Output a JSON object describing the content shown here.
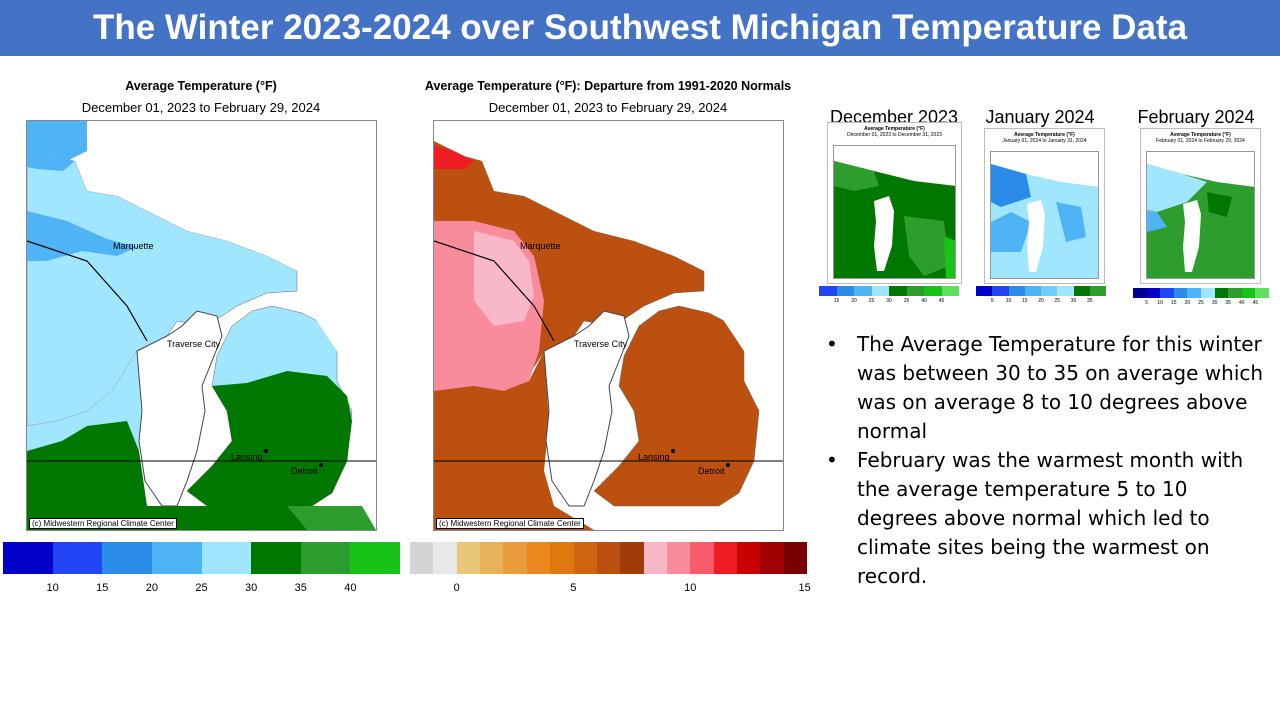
{
  "title": "The Winter 2023-2024 over Southwest Michigan Temperature Data",
  "map_avg": {
    "title": "Average Temperature (°F)",
    "subtitle": "December 01, 2023 to February 29, 2024",
    "credit": "(c) Midwestern Regional Climate Center",
    "cities": {
      "marquette": "Marquette",
      "traverse": "Traverse City",
      "lansing": "Lansing",
      "detroit": "Detroit"
    },
    "scale": {
      "colors": [
        "#0000c8",
        "#2246f5",
        "#2a8ce8",
        "#4fb4f5",
        "#a0e6ff",
        "#007800",
        "#2d9e2d",
        "#17c317"
      ],
      "ticks": [
        "10",
        "15",
        "20",
        "25",
        "30",
        "35",
        "40"
      ]
    }
  },
  "map_dep": {
    "title": "Average Temperature (°F): Departure from 1991-2020 Normals",
    "subtitle": "December 01, 2023 to February 29, 2024",
    "credit": "(c) Midwestern Regional Climate Center",
    "cities": {
      "marquette": "Marquette",
      "traverse": "Traverse City",
      "lansing": "Lansing",
      "detroit": "Detroit"
    },
    "scale": {
      "colors": [
        "#d4d4d4",
        "#e8e8e8",
        "#e8c878",
        "#e8b25a",
        "#e89c3c",
        "#e8881e",
        "#e07810",
        "#d06410",
        "#bb5010",
        "#a03c08",
        "#f8b8c8",
        "#f88c9c",
        "#f85c6c",
        "#f01c24",
        "#c80000",
        "#a00000",
        "#780000"
      ],
      "ticks": [
        "0",
        "5",
        "10",
        "15"
      ]
    }
  },
  "monthly": [
    {
      "label": "December  2023",
      "title": "Average Temperature (°F)",
      "subtitle": "December 01, 2023 to December 31, 2023",
      "ticks": [
        "15",
        "20",
        "25",
        "30",
        "35",
        "40",
        "45"
      ]
    },
    {
      "label": "January 2024",
      "title": "Average Temperature (°F)",
      "subtitle": "January 01, 2024 to January 31, 2024",
      "ticks": [
        "5",
        "10",
        "15",
        "20",
        "25",
        "30",
        "35"
      ]
    },
    {
      "label": "February 2024",
      "title": "Average Temperature (°F)",
      "subtitle": "February 01, 2024 to February 29, 2024",
      "ticks": [
        "5",
        "10",
        "15",
        "20",
        "25",
        "30",
        "35",
        "40",
        "45"
      ]
    }
  ],
  "bullets": [
    "The Average Temperature for this winter was between 30 to 35 on average which was on average 8 to 10 degrees above normal",
    "February was the warmest month with the average temperature 5 to 10 degrees above normal which led to climate sites being the warmest on record."
  ]
}
